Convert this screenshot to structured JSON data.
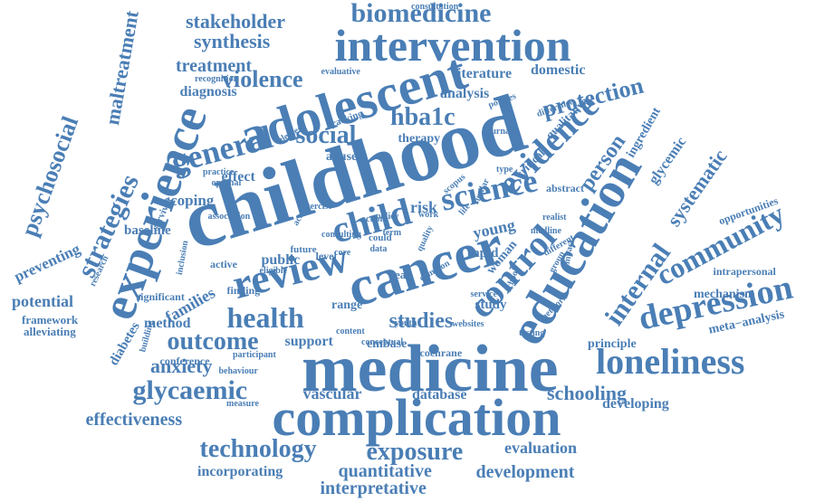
{
  "cloud": {
    "color": "#4a7eb5",
    "background": "#ffffff",
    "words": [
      "childhood",
      "medicine",
      "complication",
      "intervention",
      "adolescent",
      "cancer",
      "experience",
      "education",
      "review",
      "science",
      "child",
      "loneliness",
      "depression",
      "control",
      "evidence",
      "community",
      "internal",
      "general",
      "biomedicine",
      "glycaemic",
      "health",
      "outcome",
      "strategies",
      "psychosocial",
      "technology",
      "protection",
      "exposure",
      "violence",
      "social",
      "hba1c",
      "stakeholder",
      "synthesis",
      "treatment",
      "person",
      "systematic",
      "maltreatment",
      "anxiety",
      "effectiveness",
      "schooling",
      "studies",
      "development",
      "quantitative",
      "interpretative",
      "evaluation",
      "literature",
      "analysis",
      "domestic",
      "diagnosis",
      "families",
      "potential",
      "method",
      "young",
      "public",
      "scoping",
      "baseline",
      "preventing",
      "framework",
      "alleviating",
      "vascular",
      "database",
      "incorporating",
      "developing",
      "principle",
      "meta−analysis",
      "mechanism",
      "opportunities",
      "glycemic",
      "ingredient",
      "woman",
      "risk",
      "effect",
      "abuse",
      "therapy",
      "qualitative",
      "critical",
      "abstract",
      "support",
      "range",
      "embase",
      "cochrane",
      "intrapersonal",
      "conference",
      "diabetes",
      "significant",
      "finding",
      "active",
      "rapid",
      "study",
      "year",
      "level",
      "future",
      "eligible",
      "consultation",
      "recognition",
      "evaluative",
      "tracking",
      "element",
      "practice",
      "optimal",
      "survivor",
      "research",
      "association",
      "inclusion",
      "building",
      "participant",
      "behaviour",
      "measure",
      "conceptual",
      "youth",
      "content",
      "testing",
      "network",
      "group",
      "different",
      "realist",
      "medline",
      "impact",
      "websites",
      "service",
      "school",
      "common",
      "quality",
      "scopus",
      "similar",
      "type",
      "policies",
      "journal",
      "difference",
      "exercise",
      "consulting",
      "action",
      "policy",
      "work",
      "life",
      "term",
      "could",
      "data",
      "core",
      "acc",
      "peer",
      "aged",
      "alleviate",
      "way",
      "care",
      "month",
      "time"
    ]
  }
}
